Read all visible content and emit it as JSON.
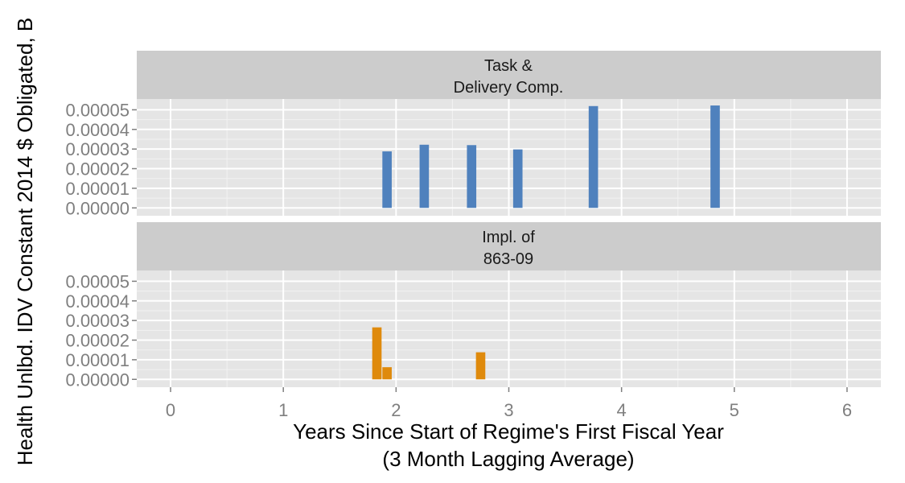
{
  "chart_data": {
    "type": "bar",
    "xlabel_line1": "Years Since Start of Regime's First Fiscal Year",
    "xlabel_line2": "(3 Month Lagging Average)",
    "ylabel": "Health Unlbd. IDV Constant 2014 $ Obligated, B",
    "xlim": [
      -0.3,
      6.3
    ],
    "ylim": [
      -4e-06,
      5.55e-05
    ],
    "x_ticks": [
      0,
      1,
      2,
      3,
      4,
      5,
      6
    ],
    "x_tick_labels": [
      "0",
      "1",
      "2",
      "3",
      "4",
      "5",
      "6"
    ],
    "y_ticks": [
      0,
      1e-05,
      2e-05,
      3e-05,
      4e-05,
      5e-05
    ],
    "y_tick_labels": [
      "0.00000",
      "0.00001",
      "0.00002",
      "0.00003",
      "0.00004",
      "0.00005"
    ],
    "grid": true,
    "bar_width": 0.083,
    "panels": [
      {
        "strip_line1": "Task &",
        "strip_line2": "Delivery Comp.",
        "color": "#4f81bd",
        "x": [
          1.92,
          2.25,
          2.67,
          3.08,
          3.75,
          4.83
        ],
        "values": [
          2.88e-05,
          3.22e-05,
          3.2e-05,
          2.98e-05,
          5.19e-05,
          5.22e-05
        ]
      },
      {
        "strip_line1": "Impl. of",
        "strip_line2": "863-09",
        "color": "#df8a0c",
        "x": [
          1.83,
          1.92,
          2.75
        ],
        "values": [
          2.65e-05,
          6.2e-06,
          1.38e-05
        ]
      }
    ]
  }
}
